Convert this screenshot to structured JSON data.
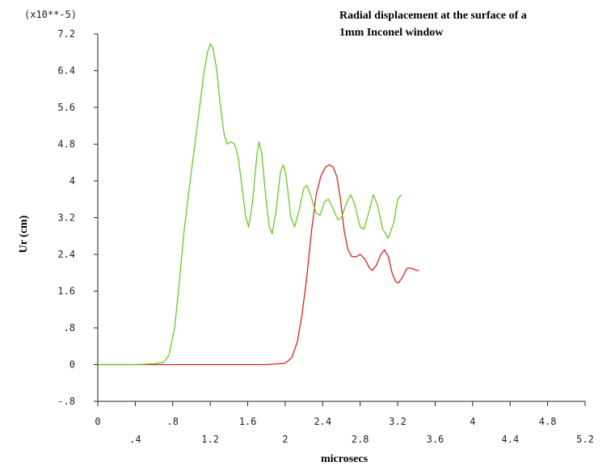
{
  "chart_data": {
    "type": "line",
    "title_lines": [
      "Radial displacement at the surface of a",
      "1mm Inconel window"
    ],
    "xlabel": "microsecs",
    "ylabel": "Ur (cm)",
    "y_multiplier": "(x10**-5)",
    "xlim": [
      0,
      5.2
    ],
    "ylim": [
      -0.8,
      7.2
    ],
    "grid": false,
    "x_ticks": [
      {
        "value": 0,
        "label": "0"
      },
      {
        "value": 0.4,
        "label": ".4"
      },
      {
        "value": 0.8,
        "label": ".8"
      },
      {
        "value": 1.2,
        "label": "1.2"
      },
      {
        "value": 1.6,
        "label": "1.6"
      },
      {
        "value": 2.0,
        "label": "2"
      },
      {
        "value": 2.4,
        "label": "2.4"
      },
      {
        "value": 2.8,
        "label": "2.8"
      },
      {
        "value": 3.2,
        "label": "3.2"
      },
      {
        "value": 3.6,
        "label": "3.6"
      },
      {
        "value": 4.0,
        "label": "4"
      },
      {
        "value": 4.4,
        "label": "4.4"
      },
      {
        "value": 4.8,
        "label": "4.8"
      },
      {
        "value": 5.2,
        "label": "5.2"
      }
    ],
    "y_ticks": [
      {
        "value": 7.2,
        "label": "7.2"
      },
      {
        "value": 6.4,
        "label": "6.4"
      },
      {
        "value": 5.6,
        "label": "5.6"
      },
      {
        "value": 4.8,
        "label": "4.8"
      },
      {
        "value": 4.0,
        "label": "4"
      },
      {
        "value": 3.2,
        "label": "3.2"
      },
      {
        "value": 2.4,
        "label": "2.4"
      },
      {
        "value": 1.6,
        "label": "1.6"
      },
      {
        "value": 0.8,
        "label": ".8"
      },
      {
        "value": 0,
        "label": "0"
      },
      {
        "value": -0.8,
        "label": "-.8"
      }
    ],
    "series": [
      {
        "color": "#66cc22",
        "points": [
          [
            0,
            0
          ],
          [
            0.4,
            0
          ],
          [
            0.6,
            0.02
          ],
          [
            0.7,
            0.05
          ],
          [
            0.76,
            0.2
          ],
          [
            0.82,
            0.8
          ],
          [
            0.87,
            1.8
          ],
          [
            0.92,
            2.9
          ],
          [
            0.98,
            3.9
          ],
          [
            1.03,
            4.7
          ],
          [
            1.08,
            5.5
          ],
          [
            1.13,
            6.3
          ],
          [
            1.17,
            6.8
          ],
          [
            1.2,
            6.98
          ],
          [
            1.23,
            6.9
          ],
          [
            1.27,
            6.4
          ],
          [
            1.31,
            5.6
          ],
          [
            1.35,
            5.0
          ],
          [
            1.38,
            4.8
          ],
          [
            1.42,
            4.85
          ],
          [
            1.46,
            4.8
          ],
          [
            1.5,
            4.5
          ],
          [
            1.55,
            3.7
          ],
          [
            1.58,
            3.2
          ],
          [
            1.61,
            3.0
          ],
          [
            1.65,
            3.5
          ],
          [
            1.7,
            4.6
          ],
          [
            1.72,
            4.85
          ],
          [
            1.75,
            4.6
          ],
          [
            1.79,
            3.7
          ],
          [
            1.83,
            3.0
          ],
          [
            1.86,
            2.85
          ],
          [
            1.9,
            3.3
          ],
          [
            1.95,
            4.2
          ],
          [
            1.98,
            4.35
          ],
          [
            2.01,
            4.1
          ],
          [
            2.06,
            3.2
          ],
          [
            2.1,
            3.0
          ],
          [
            2.14,
            3.3
          ],
          [
            2.2,
            3.85
          ],
          [
            2.23,
            3.9
          ],
          [
            2.27,
            3.7
          ],
          [
            2.33,
            3.3
          ],
          [
            2.37,
            3.25
          ],
          [
            2.42,
            3.55
          ],
          [
            2.46,
            3.6
          ],
          [
            2.51,
            3.4
          ],
          [
            2.56,
            3.15
          ],
          [
            2.6,
            3.2
          ],
          [
            2.65,
            3.5
          ],
          [
            2.7,
            3.7
          ],
          [
            2.74,
            3.5
          ],
          [
            2.8,
            3.0
          ],
          [
            2.84,
            2.95
          ],
          [
            2.89,
            3.3
          ],
          [
            2.94,
            3.7
          ],
          [
            2.98,
            3.5
          ],
          [
            3.04,
            2.95
          ],
          [
            3.1,
            2.75
          ],
          [
            3.16,
            3.1
          ],
          [
            3.2,
            3.6
          ],
          [
            3.24,
            3.7
          ]
        ]
      },
      {
        "color": "#dd2222",
        "points": [
          [
            0,
            0
          ],
          [
            1.8,
            0
          ],
          [
            2.0,
            0.03
          ],
          [
            2.07,
            0.15
          ],
          [
            2.13,
            0.5
          ],
          [
            2.18,
            1.1
          ],
          [
            2.23,
            1.9
          ],
          [
            2.28,
            2.9
          ],
          [
            2.33,
            3.7
          ],
          [
            2.38,
            4.1
          ],
          [
            2.43,
            4.3
          ],
          [
            2.47,
            4.35
          ],
          [
            2.51,
            4.3
          ],
          [
            2.55,
            4.1
          ],
          [
            2.59,
            3.6
          ],
          [
            2.63,
            2.9
          ],
          [
            2.67,
            2.5
          ],
          [
            2.71,
            2.35
          ],
          [
            2.76,
            2.35
          ],
          [
            2.8,
            2.4
          ],
          [
            2.85,
            2.3
          ],
          [
            2.9,
            2.1
          ],
          [
            2.93,
            2.05
          ],
          [
            2.97,
            2.15
          ],
          [
            3.02,
            2.4
          ],
          [
            3.06,
            2.5
          ],
          [
            3.1,
            2.35
          ],
          [
            3.14,
            2.0
          ],
          [
            3.18,
            1.8
          ],
          [
            3.21,
            1.78
          ],
          [
            3.25,
            1.9
          ],
          [
            3.3,
            2.1
          ],
          [
            3.35,
            2.1
          ],
          [
            3.4,
            2.05
          ],
          [
            3.43,
            2.05
          ]
        ]
      }
    ]
  }
}
